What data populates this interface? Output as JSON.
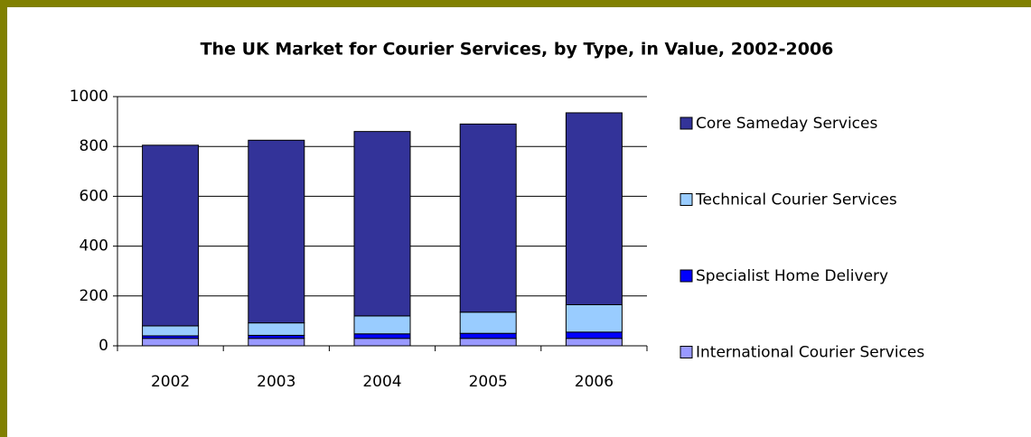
{
  "chart_data": {
    "type": "stacked_bar",
    "title": "The UK Market for Courier Services, by Type, in Value, 2002-2006",
    "categories": [
      "2002",
      "2003",
      "2004",
      "2005",
      "2006"
    ],
    "series": [
      {
        "name": "International Courier Services",
        "color": "#9999ff",
        "values": [
          30,
          30,
          30,
          30,
          30
        ]
      },
      {
        "name": "Specialist Home Delivery",
        "color": "#0000ff",
        "values": [
          10,
          12,
          18,
          20,
          25
        ]
      },
      {
        "name": "Technical Courier Services",
        "color": "#99ccff",
        "values": [
          40,
          50,
          72,
          85,
          110
        ]
      },
      {
        "name": "Core Sameday Services",
        "color": "#333399",
        "values": [
          725,
          733,
          740,
          755,
          770
        ]
      }
    ],
    "ylim": [
      0,
      1000
    ],
    "yticks": [
      0,
      200,
      400,
      600,
      800,
      1000
    ],
    "grid": true,
    "legend": "right"
  }
}
